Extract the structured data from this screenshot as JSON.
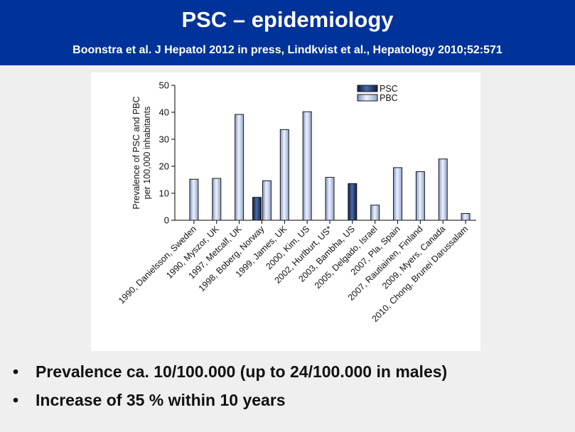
{
  "header": {
    "title": "PSC – epidemiology",
    "subtitle": "Boonstra et al. J Hepatol 2012 in press, Lindkvist et al., Hepatology 2010;52:571"
  },
  "bullets": [
    "Prevalence ca. 10/100.000 (up to 24/100.000 in males)",
    "Increase of 35 % within 10 years"
  ],
  "bullet_glyph": "•",
  "colors": {
    "header_bg": "#003399",
    "psc": "#1f3a6e",
    "pbc": "#c5d3ee"
  },
  "chart_data": {
    "type": "bar",
    "ylabel": "Prevalence of PSC and PBC per 100,000 inhabitants",
    "ylabel_lines": [
      "Prevalence of PSC and PBC",
      "per 100,000 inhabitants"
    ],
    "ylim": [
      0,
      50
    ],
    "yticks": [
      0,
      10,
      20,
      30,
      40,
      50
    ],
    "legend_position": "top-right",
    "series_names": [
      "PSC",
      "PBC"
    ],
    "categories": [
      "1990, Danielsson, Sweden",
      "1990, Myszor, UK",
      "1997, Metcalf, UK",
      "1998, Boberg, Norway",
      "1999, James, UK",
      "2000, Kim, US",
      "2002, Hurlburt, US*",
      "2003, Bambha, US",
      "2005, Delgado, Israel",
      "2007, Pla, Spain",
      "2007, Rautiainen, Finland",
      "2009, Myers, Canada",
      "2010, Chong, Brunei Darussalam"
    ],
    "bars": [
      {
        "category": 0,
        "series": "PBC",
        "value": 15.2
      },
      {
        "category": 1,
        "series": "PBC",
        "value": 15.5
      },
      {
        "category": 2,
        "series": "PBC",
        "value": 39.2
      },
      {
        "category": 3,
        "series": "PSC",
        "value": 8.5
      },
      {
        "category": 3,
        "series": "PBC",
        "value": 14.6
      },
      {
        "category": 4,
        "series": "PBC",
        "value": 33.6
      },
      {
        "category": 5,
        "series": "PBC",
        "value": 40.2
      },
      {
        "category": 6,
        "series": "PBC",
        "value": 15.9
      },
      {
        "category": 7,
        "series": "PSC",
        "value": 13.6
      },
      {
        "category": 8,
        "series": "PBC",
        "value": 5.6
      },
      {
        "category": 9,
        "series": "PBC",
        "value": 19.5
      },
      {
        "category": 10,
        "series": "PBC",
        "value": 18.0
      },
      {
        "category": 11,
        "series": "PBC",
        "value": 22.7
      },
      {
        "category": 12,
        "series": "PBC",
        "value": 2.5
      }
    ]
  }
}
